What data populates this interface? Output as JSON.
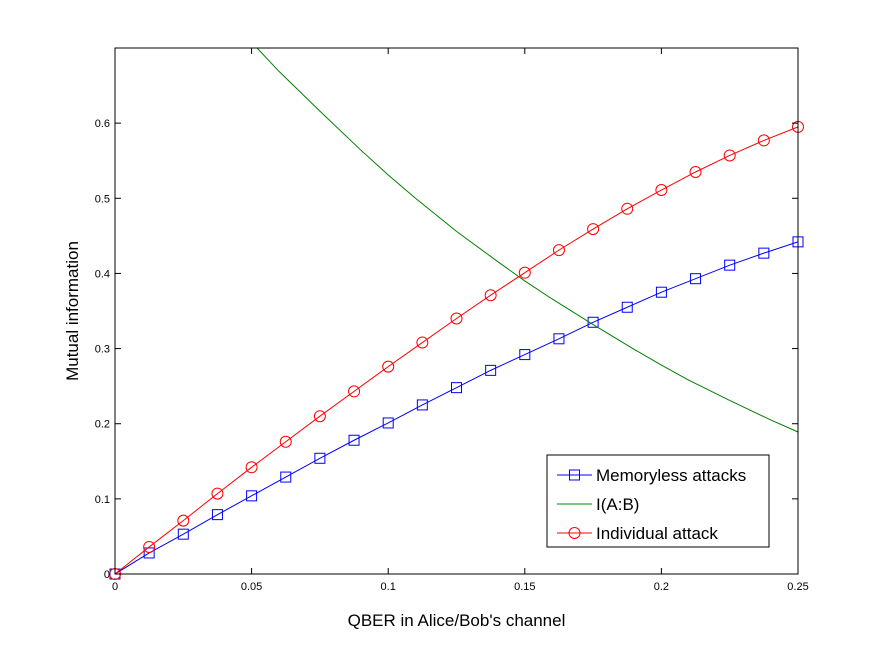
{
  "chart_data": {
    "type": "line",
    "title": "",
    "xlabel": "QBER in Alice/Bob's channel",
    "ylabel": "Mutual information",
    "xlim": [
      0,
      0.25
    ],
    "ylim": [
      0,
      0.7
    ],
    "xticks": [
      0,
      0.05,
      0.1,
      0.15,
      0.2,
      0.25
    ],
    "xtick_labels": [
      "0",
      "0.05",
      "0.1",
      "0.15",
      "0.2",
      "0.25"
    ],
    "yticks": [
      0,
      0.1,
      0.2,
      0.3,
      0.4,
      0.5,
      0.6
    ],
    "ytick_labels": [
      "0",
      "0.1",
      "0.2",
      "0.3",
      "0.4",
      "0.5",
      "0.6"
    ],
    "grid": false,
    "legend_position": "bottom-right",
    "series": [
      {
        "name": "Memoryless attacks",
        "color": "#0000ff",
        "marker": "square",
        "x": [
          0,
          0.0125,
          0.025,
          0.0375,
          0.05,
          0.0625,
          0.075,
          0.0875,
          0.1,
          0.1125,
          0.125,
          0.1375,
          0.15,
          0.1625,
          0.175,
          0.1875,
          0.2,
          0.2125,
          0.225,
          0.2375,
          0.25
        ],
        "y": [
          0,
          0.028,
          0.053,
          0.079,
          0.104,
          0.129,
          0.154,
          0.178,
          0.201,
          0.225,
          0.248,
          0.271,
          0.292,
          0.313,
          0.335,
          0.355,
          0.375,
          0.393,
          0.411,
          0.427,
          0.442
        ]
      },
      {
        "name": "I(A:B)",
        "color": "#008000",
        "marker": "none",
        "x": [
          0.052,
          0.06,
          0.075,
          0.09,
          0.1,
          0.11,
          0.125,
          0.14,
          0.15,
          0.16,
          0.175,
          0.19,
          0.2,
          0.21,
          0.225,
          0.24,
          0.25
        ],
        "y": [
          0.7,
          0.669,
          0.616,
          0.564,
          0.531,
          0.5,
          0.456,
          0.416,
          0.39,
          0.366,
          0.332,
          0.299,
          0.278,
          0.258,
          0.231,
          0.205,
          0.189
        ]
      },
      {
        "name": "Individual attack",
        "color": "#ff0000",
        "marker": "circle",
        "x": [
          0,
          0.0125,
          0.025,
          0.0375,
          0.05,
          0.0625,
          0.075,
          0.0875,
          0.1,
          0.1125,
          0.125,
          0.1375,
          0.15,
          0.1625,
          0.175,
          0.1875,
          0.2,
          0.2125,
          0.225,
          0.2375,
          0.25
        ],
        "y": [
          0,
          0.036,
          0.071,
          0.107,
          0.142,
          0.176,
          0.21,
          0.243,
          0.276,
          0.308,
          0.34,
          0.371,
          0.401,
          0.431,
          0.459,
          0.486,
          0.511,
          0.535,
          0.557,
          0.577,
          0.595
        ]
      }
    ]
  },
  "legend": {
    "items": [
      "Memoryless attacks",
      "I(A:B)",
      "Individual attack"
    ]
  }
}
